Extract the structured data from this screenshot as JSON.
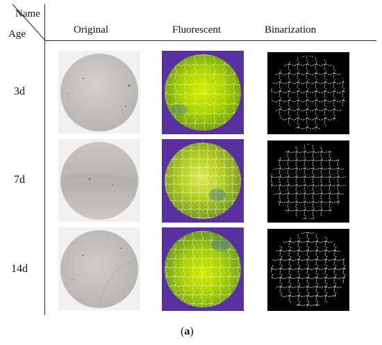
{
  "figure": {
    "header": {
      "corner_name": "Name",
      "corner_age": "Age",
      "columns": [
        "Original",
        "Fluorescent",
        "Binarization"
      ]
    },
    "rows": [
      {
        "label": "3d"
      },
      {
        "label": "7d"
      },
      {
        "label": "14d"
      }
    ],
    "caption": {
      "open": "(",
      "letter": "a",
      "close": ")"
    }
  }
}
